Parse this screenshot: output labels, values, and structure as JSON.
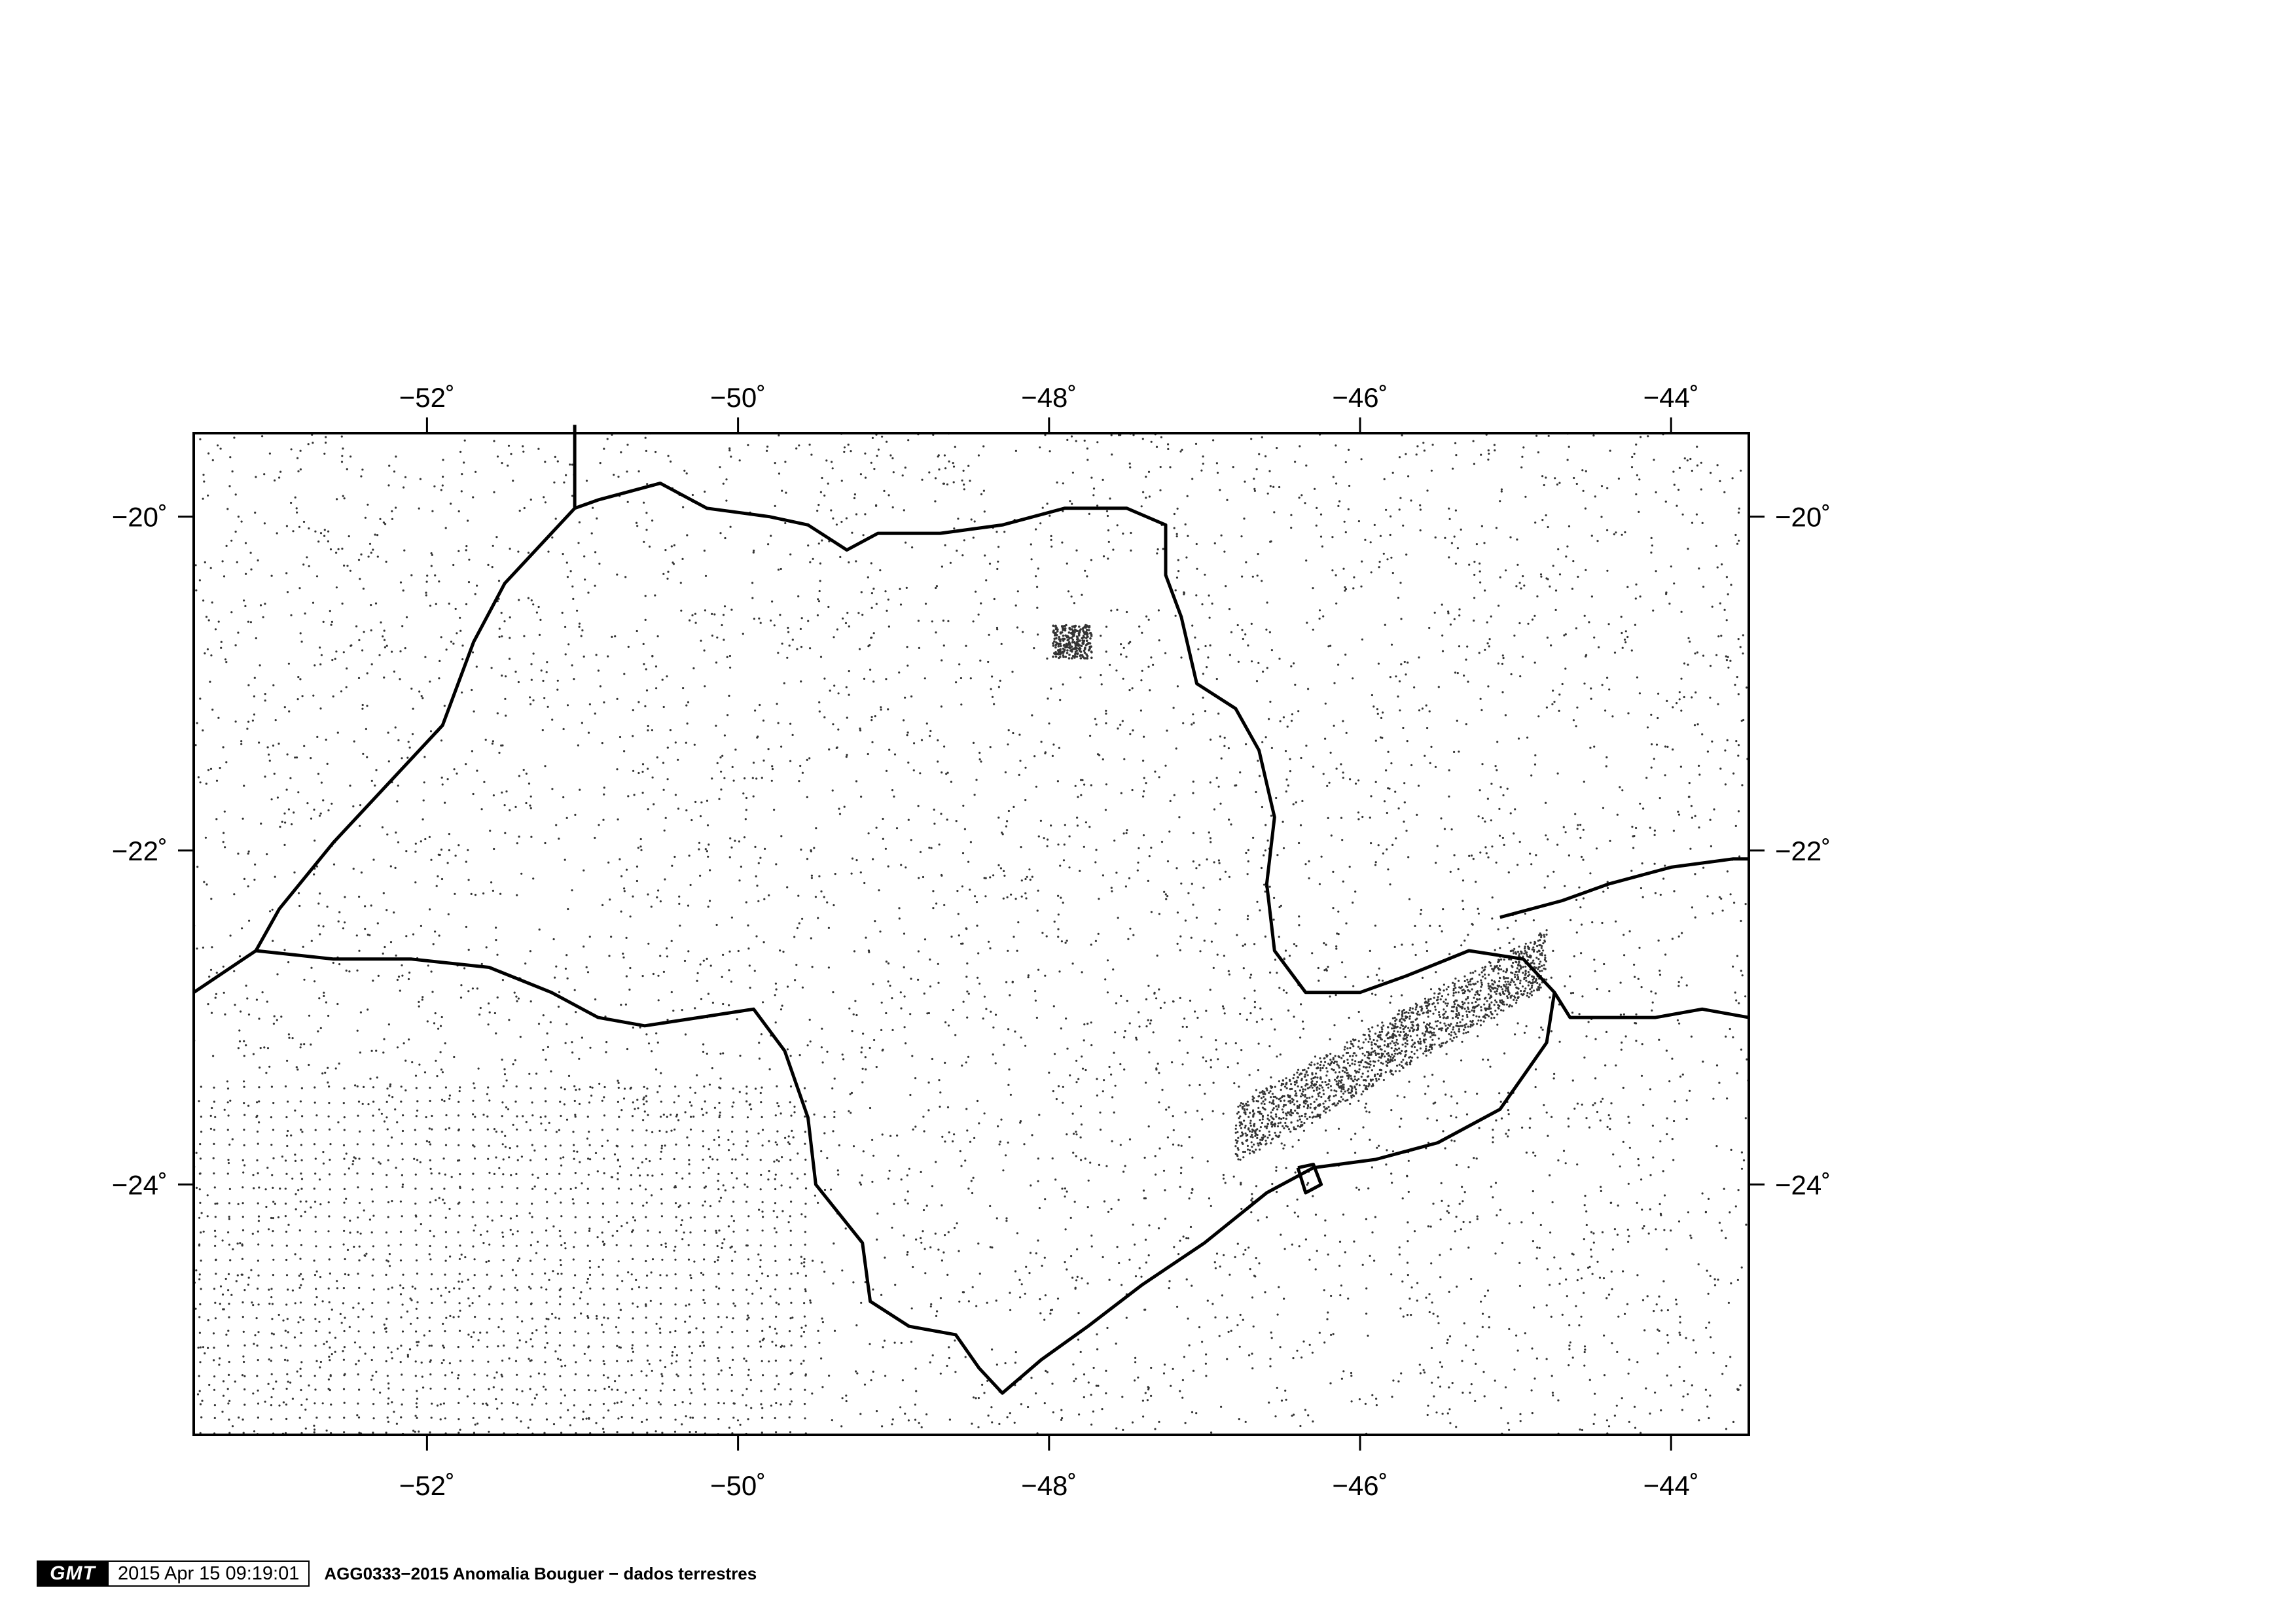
{
  "map": {
    "lon_range": [
      -53.5,
      -43.5
    ],
    "lat_range": [
      -25.5,
      -19.5
    ],
    "lon_ticks": [
      {
        "value": -52,
        "label": "−52˚"
      },
      {
        "value": -50,
        "label": "−50˚"
      },
      {
        "value": -48,
        "label": "−48˚"
      },
      {
        "value": -46,
        "label": "−46˚"
      },
      {
        "value": -44,
        "label": "−44˚"
      }
    ],
    "lat_ticks": [
      {
        "value": -20,
        "label": "−20˚"
      },
      {
        "value": -22,
        "label": "−22˚"
      },
      {
        "value": -24,
        "label": "−24˚"
      }
    ],
    "colors": {
      "frame": "#000000",
      "border": "#000000",
      "station": "#333333",
      "background": "#ffffff"
    },
    "state_border_lonlat": [
      [
        -51.05,
        -19.45
      ],
      [
        -51.05,
        -19.95
      ],
      [
        -51.5,
        -20.4
      ],
      [
        -51.7,
        -20.75
      ],
      [
        -51.9,
        -21.25
      ],
      [
        -52.2,
        -21.55
      ],
      [
        -52.6,
        -21.95
      ],
      [
        -52.95,
        -22.35
      ],
      [
        -53.1,
        -22.6
      ],
      [
        -52.6,
        -22.65
      ],
      [
        -52.1,
        -22.65
      ],
      [
        -51.6,
        -22.7
      ],
      [
        -51.2,
        -22.85
      ],
      [
        -50.9,
        -23.0
      ],
      [
        -50.6,
        -23.05
      ],
      [
        -50.25,
        -23.0
      ],
      [
        -49.9,
        -22.95
      ],
      [
        -49.7,
        -23.2
      ],
      [
        -49.55,
        -23.6
      ],
      [
        -49.5,
        -24.0
      ],
      [
        -49.2,
        -24.35
      ],
      [
        -49.15,
        -24.7
      ],
      [
        -48.9,
        -24.85
      ],
      [
        -48.6,
        -24.9
      ],
      [
        -48.45,
        -25.1
      ],
      [
        -48.3,
        -25.25
      ],
      [
        -48.05,
        -25.05
      ],
      [
        -47.75,
        -24.85
      ],
      [
        -47.4,
        -24.6
      ],
      [
        -47.0,
        -24.35
      ],
      [
        -46.6,
        -24.05
      ],
      [
        -46.3,
        -23.9
      ],
      [
        -45.9,
        -23.85
      ],
      [
        -45.5,
        -23.75
      ],
      [
        -45.1,
        -23.55
      ],
      [
        -44.95,
        -23.35
      ],
      [
        -44.8,
        -23.15
      ],
      [
        -44.75,
        -22.85
      ],
      [
        -44.95,
        -22.65
      ],
      [
        -45.3,
        -22.6
      ],
      [
        -45.7,
        -22.75
      ],
      [
        -46.0,
        -22.85
      ],
      [
        -46.35,
        -22.85
      ],
      [
        -46.55,
        -22.6
      ],
      [
        -46.6,
        -22.2
      ],
      [
        -46.55,
        -21.8
      ],
      [
        -46.65,
        -21.4
      ],
      [
        -46.8,
        -21.15
      ],
      [
        -47.05,
        -21.0
      ],
      [
        -47.15,
        -20.6
      ],
      [
        -47.25,
        -20.35
      ],
      [
        -47.25,
        -20.05
      ],
      [
        -47.5,
        -19.95
      ],
      [
        -47.9,
        -19.95
      ],
      [
        -48.3,
        -20.05
      ],
      [
        -48.7,
        -20.1
      ],
      [
        -49.1,
        -20.1
      ],
      [
        -49.3,
        -20.2
      ],
      [
        -49.55,
        -20.05
      ],
      [
        -49.8,
        -20.0
      ],
      [
        -50.2,
        -19.95
      ],
      [
        -50.5,
        -19.8
      ],
      [
        -50.9,
        -19.9
      ],
      [
        -51.05,
        -19.95
      ]
    ],
    "west_border_lonlat": [
      [
        -53.5,
        -22.85
      ],
      [
        -53.1,
        -22.6
      ]
    ],
    "rj_border_lonlat": [
      [
        -45.1,
        -22.4
      ],
      [
        -44.7,
        -22.3
      ],
      [
        -44.4,
        -22.2
      ],
      [
        -44.0,
        -22.1
      ],
      [
        -43.6,
        -22.05
      ],
      [
        -43.5,
        -22.05
      ]
    ],
    "rj_coast_lonlat": [
      [
        -44.75,
        -22.85
      ],
      [
        -44.65,
        -23.0
      ],
      [
        -44.4,
        -23.0
      ],
      [
        -44.1,
        -23.0
      ],
      [
        -43.8,
        -22.95
      ],
      [
        -43.5,
        -23.0
      ]
    ],
    "ilha_lonlat": [
      [
        -46.4,
        -23.9
      ],
      [
        -46.35,
        -24.05
      ],
      [
        -46.25,
        -24.0
      ],
      [
        -46.3,
        -23.88
      ],
      [
        -46.4,
        -23.9
      ]
    ]
  },
  "footer": {
    "logo": "GMT",
    "timestamp": "2015 Apr 15 09:19:01",
    "title": "AGG0333−2015 Anomalia Bouguer − dados terrestres"
  }
}
